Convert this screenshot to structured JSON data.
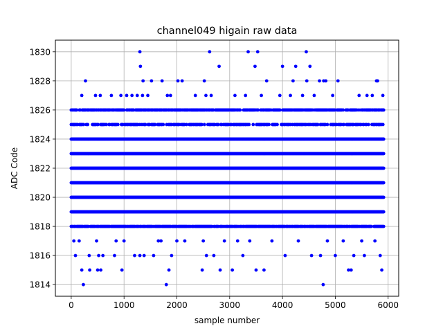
{
  "chart_data": {
    "type": "scatter",
    "title": "channel049 higain raw data",
    "xlabel": "sample number",
    "ylabel": "ADC Code",
    "xlim": [
      -300,
      6200
    ],
    "ylim": [
      1813.2,
      1830.8
    ],
    "xticks": [
      0,
      1000,
      2000,
      3000,
      4000,
      5000,
      6000
    ],
    "yticks": [
      1814,
      1816,
      1818,
      1820,
      1822,
      1824,
      1826,
      1828,
      1830
    ],
    "grid": true,
    "marker_color": "#0000ff",
    "series": [
      {
        "name": "",
        "x_range": [
          0,
          5920
        ],
        "description_levels": "dense bands of points at integer ADC codes",
        "dense_levels": [
          1818,
          1819,
          1820,
          1821,
          1822,
          1823,
          1824,
          1825,
          1826
        ],
        "sparse_points": [
          {
            "x": 50,
            "y": 1817
          },
          {
            "x": 80,
            "y": 1816
          },
          {
            "x": 150,
            "y": 1817
          },
          {
            "x": 200,
            "y": 1815
          },
          {
            "x": 230,
            "y": 1814
          },
          {
            "x": 270,
            "y": 1828
          },
          {
            "x": 200,
            "y": 1827
          },
          {
            "x": 340,
            "y": 1816
          },
          {
            "x": 350,
            "y": 1815
          },
          {
            "x": 460,
            "y": 1827
          },
          {
            "x": 480,
            "y": 1817
          },
          {
            "x": 500,
            "y": 1815
          },
          {
            "x": 520,
            "y": 1816
          },
          {
            "x": 550,
            "y": 1827
          },
          {
            "x": 560,
            "y": 1815
          },
          {
            "x": 600,
            "y": 1816
          },
          {
            "x": 760,
            "y": 1827
          },
          {
            "x": 820,
            "y": 1816
          },
          {
            "x": 850,
            "y": 1817
          },
          {
            "x": 940,
            "y": 1827
          },
          {
            "x": 960,
            "y": 1815
          },
          {
            "x": 1000,
            "y": 1817
          },
          {
            "x": 1050,
            "y": 1827
          },
          {
            "x": 1150,
            "y": 1827
          },
          {
            "x": 1200,
            "y": 1816
          },
          {
            "x": 1250,
            "y": 1827
          },
          {
            "x": 1300,
            "y": 1830
          },
          {
            "x": 1310,
            "y": 1829
          },
          {
            "x": 1300,
            "y": 1816
          },
          {
            "x": 1350,
            "y": 1827
          },
          {
            "x": 1360,
            "y": 1828
          },
          {
            "x": 1380,
            "y": 1816
          },
          {
            "x": 1450,
            "y": 1827
          },
          {
            "x": 1520,
            "y": 1828
          },
          {
            "x": 1560,
            "y": 1816
          },
          {
            "x": 1650,
            "y": 1817
          },
          {
            "x": 1700,
            "y": 1817
          },
          {
            "x": 1720,
            "y": 1828
          },
          {
            "x": 1800,
            "y": 1814
          },
          {
            "x": 1820,
            "y": 1827
          },
          {
            "x": 1850,
            "y": 1815
          },
          {
            "x": 1880,
            "y": 1827
          },
          {
            "x": 1900,
            "y": 1816
          },
          {
            "x": 2000,
            "y": 1817
          },
          {
            "x": 2020,
            "y": 1828
          },
          {
            "x": 2100,
            "y": 1828
          },
          {
            "x": 2150,
            "y": 1817
          },
          {
            "x": 2350,
            "y": 1827
          },
          {
            "x": 2480,
            "y": 1815
          },
          {
            "x": 2500,
            "y": 1817
          },
          {
            "x": 2520,
            "y": 1828
          },
          {
            "x": 2550,
            "y": 1827
          },
          {
            "x": 2560,
            "y": 1816
          },
          {
            "x": 2620,
            "y": 1830
          },
          {
            "x": 2650,
            "y": 1827
          },
          {
            "x": 2700,
            "y": 1816
          },
          {
            "x": 2800,
            "y": 1829
          },
          {
            "x": 2820,
            "y": 1815
          },
          {
            "x": 2900,
            "y": 1817
          },
          {
            "x": 3050,
            "y": 1815
          },
          {
            "x": 3100,
            "y": 1827
          },
          {
            "x": 3150,
            "y": 1817
          },
          {
            "x": 3250,
            "y": 1816
          },
          {
            "x": 3300,
            "y": 1827
          },
          {
            "x": 3350,
            "y": 1830
          },
          {
            "x": 3380,
            "y": 1817
          },
          {
            "x": 3480,
            "y": 1829
          },
          {
            "x": 3500,
            "y": 1815
          },
          {
            "x": 3530,
            "y": 1830
          },
          {
            "x": 3600,
            "y": 1827
          },
          {
            "x": 3650,
            "y": 1815
          },
          {
            "x": 3700,
            "y": 1828
          },
          {
            "x": 3800,
            "y": 1817
          },
          {
            "x": 3950,
            "y": 1827
          },
          {
            "x": 4000,
            "y": 1829
          },
          {
            "x": 4050,
            "y": 1816
          },
          {
            "x": 4150,
            "y": 1827
          },
          {
            "x": 4200,
            "y": 1828
          },
          {
            "x": 4250,
            "y": 1829
          },
          {
            "x": 4300,
            "y": 1817
          },
          {
            "x": 4380,
            "y": 1827
          },
          {
            "x": 4450,
            "y": 1830
          },
          {
            "x": 4460,
            "y": 1828
          },
          {
            "x": 4520,
            "y": 1829
          },
          {
            "x": 4550,
            "y": 1816
          },
          {
            "x": 4600,
            "y": 1827
          },
          {
            "x": 4700,
            "y": 1828
          },
          {
            "x": 4720,
            "y": 1816
          },
          {
            "x": 4770,
            "y": 1814
          },
          {
            "x": 4780,
            "y": 1828
          },
          {
            "x": 4820,
            "y": 1828
          },
          {
            "x": 4850,
            "y": 1817
          },
          {
            "x": 4950,
            "y": 1827
          },
          {
            "x": 5000,
            "y": 1816
          },
          {
            "x": 5050,
            "y": 1828
          },
          {
            "x": 5150,
            "y": 1817
          },
          {
            "x": 5250,
            "y": 1815
          },
          {
            "x": 5300,
            "y": 1815
          },
          {
            "x": 5350,
            "y": 1816
          },
          {
            "x": 5450,
            "y": 1827
          },
          {
            "x": 5500,
            "y": 1817
          },
          {
            "x": 5550,
            "y": 1816
          },
          {
            "x": 5600,
            "y": 1827
          },
          {
            "x": 5700,
            "y": 1827
          },
          {
            "x": 5750,
            "y": 1817
          },
          {
            "x": 5780,
            "y": 1828
          },
          {
            "x": 5800,
            "y": 1828
          },
          {
            "x": 5850,
            "y": 1816
          },
          {
            "x": 5880,
            "y": 1815
          },
          {
            "x": 5900,
            "y": 1827
          }
        ],
        "top_band_points": [
          {
            "level": 1825,
            "density": 0.6
          },
          {
            "level": 1826,
            "density": 0.8
          },
          {
            "level": 1818,
            "density": 0.85
          }
        ]
      }
    ]
  }
}
